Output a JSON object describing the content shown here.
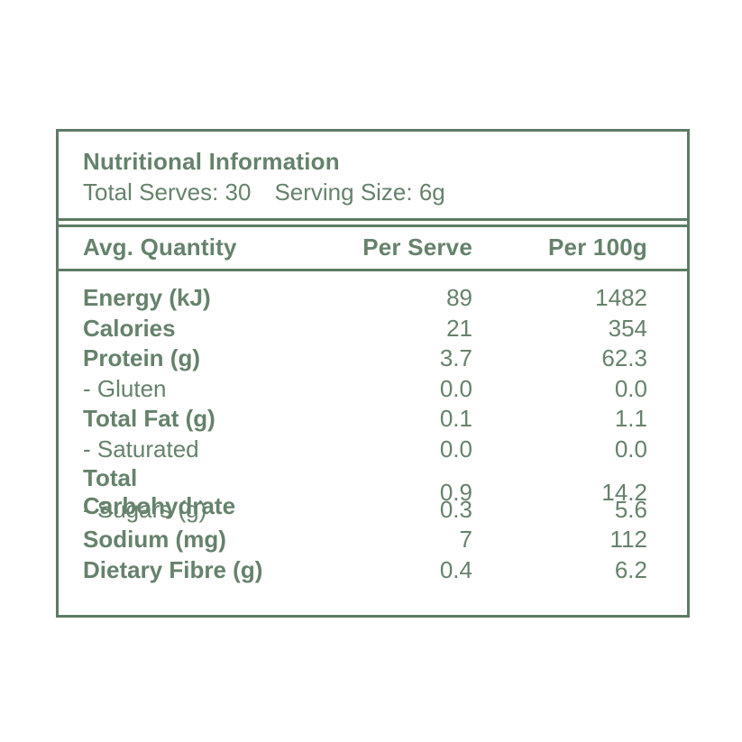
{
  "label": {
    "title": "Nutritional Information",
    "serves": {
      "total_serves": "Total Serves: 30",
      "serving_size": "Serving Size: 6g"
    },
    "columns": {
      "label": "Avg. Quantity",
      "per_serve": "Per Serve",
      "per_100g": "Per 100g"
    },
    "rows": [
      {
        "label": "Energy (kJ)",
        "per_serve": "89",
        "per_100g": "1482",
        "emphasis": "bold"
      },
      {
        "label": "Calories",
        "per_serve": "21",
        "per_100g": "354",
        "emphasis": "bold"
      },
      {
        "label": "Protein (g)",
        "per_serve": "3.7",
        "per_100g": "62.3",
        "emphasis": "bold"
      },
      {
        "label": "- Gluten",
        "per_serve": "0.0",
        "per_100g": "0.0",
        "emphasis": "regular"
      },
      {
        "label": "Total Fat (g)",
        "per_serve": "0.1",
        "per_100g": "1.1",
        "emphasis": "bold"
      },
      {
        "label": "- Saturated",
        "per_serve": "0.0",
        "per_100g": "0.0",
        "emphasis": "regular"
      },
      {
        "label": "Total Carbohydrate",
        "per_serve": "0.9",
        "per_100g": "14.2",
        "emphasis": "bold"
      },
      {
        "label": "- Sugars (g)",
        "per_serve": "0.3",
        "per_100g": "5.6",
        "emphasis": "regular"
      },
      {
        "label": "Sodium (mg)",
        "per_serve": "7",
        "per_100g": "112",
        "emphasis": "bold"
      },
      {
        "label": "Dietary Fibre (g)",
        "per_serve": "0.4",
        "per_100g": "6.2",
        "emphasis": "bold"
      }
    ],
    "colors": {
      "text_green": "#65826B",
      "border_green": "#5E7B65",
      "background": "#FFFFFF"
    }
  }
}
